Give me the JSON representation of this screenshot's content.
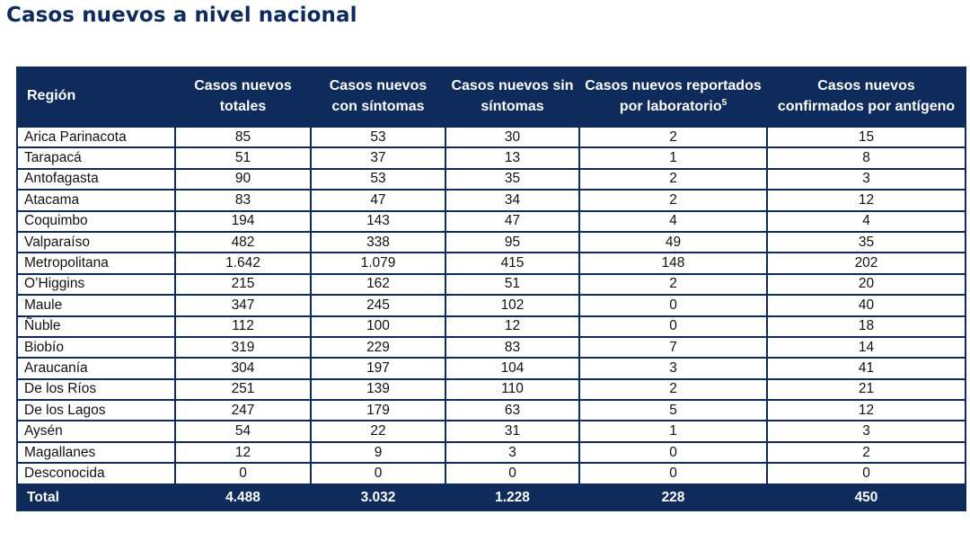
{
  "title": "Casos nuevos a nivel nacional",
  "colors": {
    "header_bg": "#0e2b5c",
    "header_text": "#ffffff",
    "grid": "#0e2b5c"
  },
  "table": {
    "headers": {
      "region": "Región",
      "totales_l1": "Casos nuevos",
      "totales_l2": "totales",
      "con_l1": "Casos nuevos",
      "con_l2": "con síntomas",
      "sin_l1": "Casos nuevos sin",
      "sin_l2": "síntomas",
      "lab_l1": "Casos nuevos reportados",
      "lab_l2": "por laboratorio",
      "lab_sup": "5",
      "ant_l1": "Casos nuevos",
      "ant_l2": "confirmados por antígeno"
    },
    "rows": [
      {
        "region": "Arica Parinacota",
        "totales": "85",
        "con_sintomas": "53",
        "sin_sintomas": "30",
        "laboratorio": "2",
        "antigeno": "15"
      },
      {
        "region": "Tarapacá",
        "totales": "51",
        "con_sintomas": "37",
        "sin_sintomas": "13",
        "laboratorio": "1",
        "antigeno": "8"
      },
      {
        "region": "Antofagasta",
        "totales": "90",
        "con_sintomas": "53",
        "sin_sintomas": "35",
        "laboratorio": "2",
        "antigeno": "3"
      },
      {
        "region": "Atacama",
        "totales": "83",
        "con_sintomas": "47",
        "sin_sintomas": "34",
        "laboratorio": "2",
        "antigeno": "12"
      },
      {
        "region": "Coquimbo",
        "totales": "194",
        "con_sintomas": "143",
        "sin_sintomas": "47",
        "laboratorio": "4",
        "antigeno": "4"
      },
      {
        "region": "Valparaíso",
        "totales": "482",
        "con_sintomas": "338",
        "sin_sintomas": "95",
        "laboratorio": "49",
        "antigeno": "35"
      },
      {
        "region": "Metropolitana",
        "totales": "1.642",
        "con_sintomas": "1.079",
        "sin_sintomas": "415",
        "laboratorio": "148",
        "antigeno": "202"
      },
      {
        "region": "O’Higgins",
        "totales": "215",
        "con_sintomas": "162",
        "sin_sintomas": "51",
        "laboratorio": "2",
        "antigeno": "20"
      },
      {
        "region": "Maule",
        "totales": "347",
        "con_sintomas": "245",
        "sin_sintomas": "102",
        "laboratorio": "0",
        "antigeno": "40"
      },
      {
        "region": "Ñuble",
        "totales": "112",
        "con_sintomas": "100",
        "sin_sintomas": "12",
        "laboratorio": "0",
        "antigeno": "18"
      },
      {
        "region": "Biobío",
        "totales": "319",
        "con_sintomas": "229",
        "sin_sintomas": "83",
        "laboratorio": "7",
        "antigeno": "14"
      },
      {
        "region": "Araucanía",
        "totales": "304",
        "con_sintomas": "197",
        "sin_sintomas": "104",
        "laboratorio": "3",
        "antigeno": "41"
      },
      {
        "region": "De los Ríos",
        "totales": "251",
        "con_sintomas": "139",
        "sin_sintomas": "110",
        "laboratorio": "2",
        "antigeno": "21"
      },
      {
        "region": "De los Lagos",
        "totales": "247",
        "con_sintomas": "179",
        "sin_sintomas": "63",
        "laboratorio": "5",
        "antigeno": "12"
      },
      {
        "region": "Aysén",
        "totales": "54",
        "con_sintomas": "22",
        "sin_sintomas": "31",
        "laboratorio": "1",
        "antigeno": "3"
      },
      {
        "region": "Magallanes",
        "totales": "12",
        "con_sintomas": "9",
        "sin_sintomas": "3",
        "laboratorio": "0",
        "antigeno": "2"
      },
      {
        "region": "Desconocida",
        "totales": "0",
        "con_sintomas": "0",
        "sin_sintomas": "0",
        "laboratorio": "0",
        "antigeno": "0"
      }
    ],
    "total": {
      "region": "Total",
      "totales": "4.488",
      "con_sintomas": "3.032",
      "sin_sintomas": "1.228",
      "laboratorio": "228",
      "antigeno": "450"
    }
  }
}
